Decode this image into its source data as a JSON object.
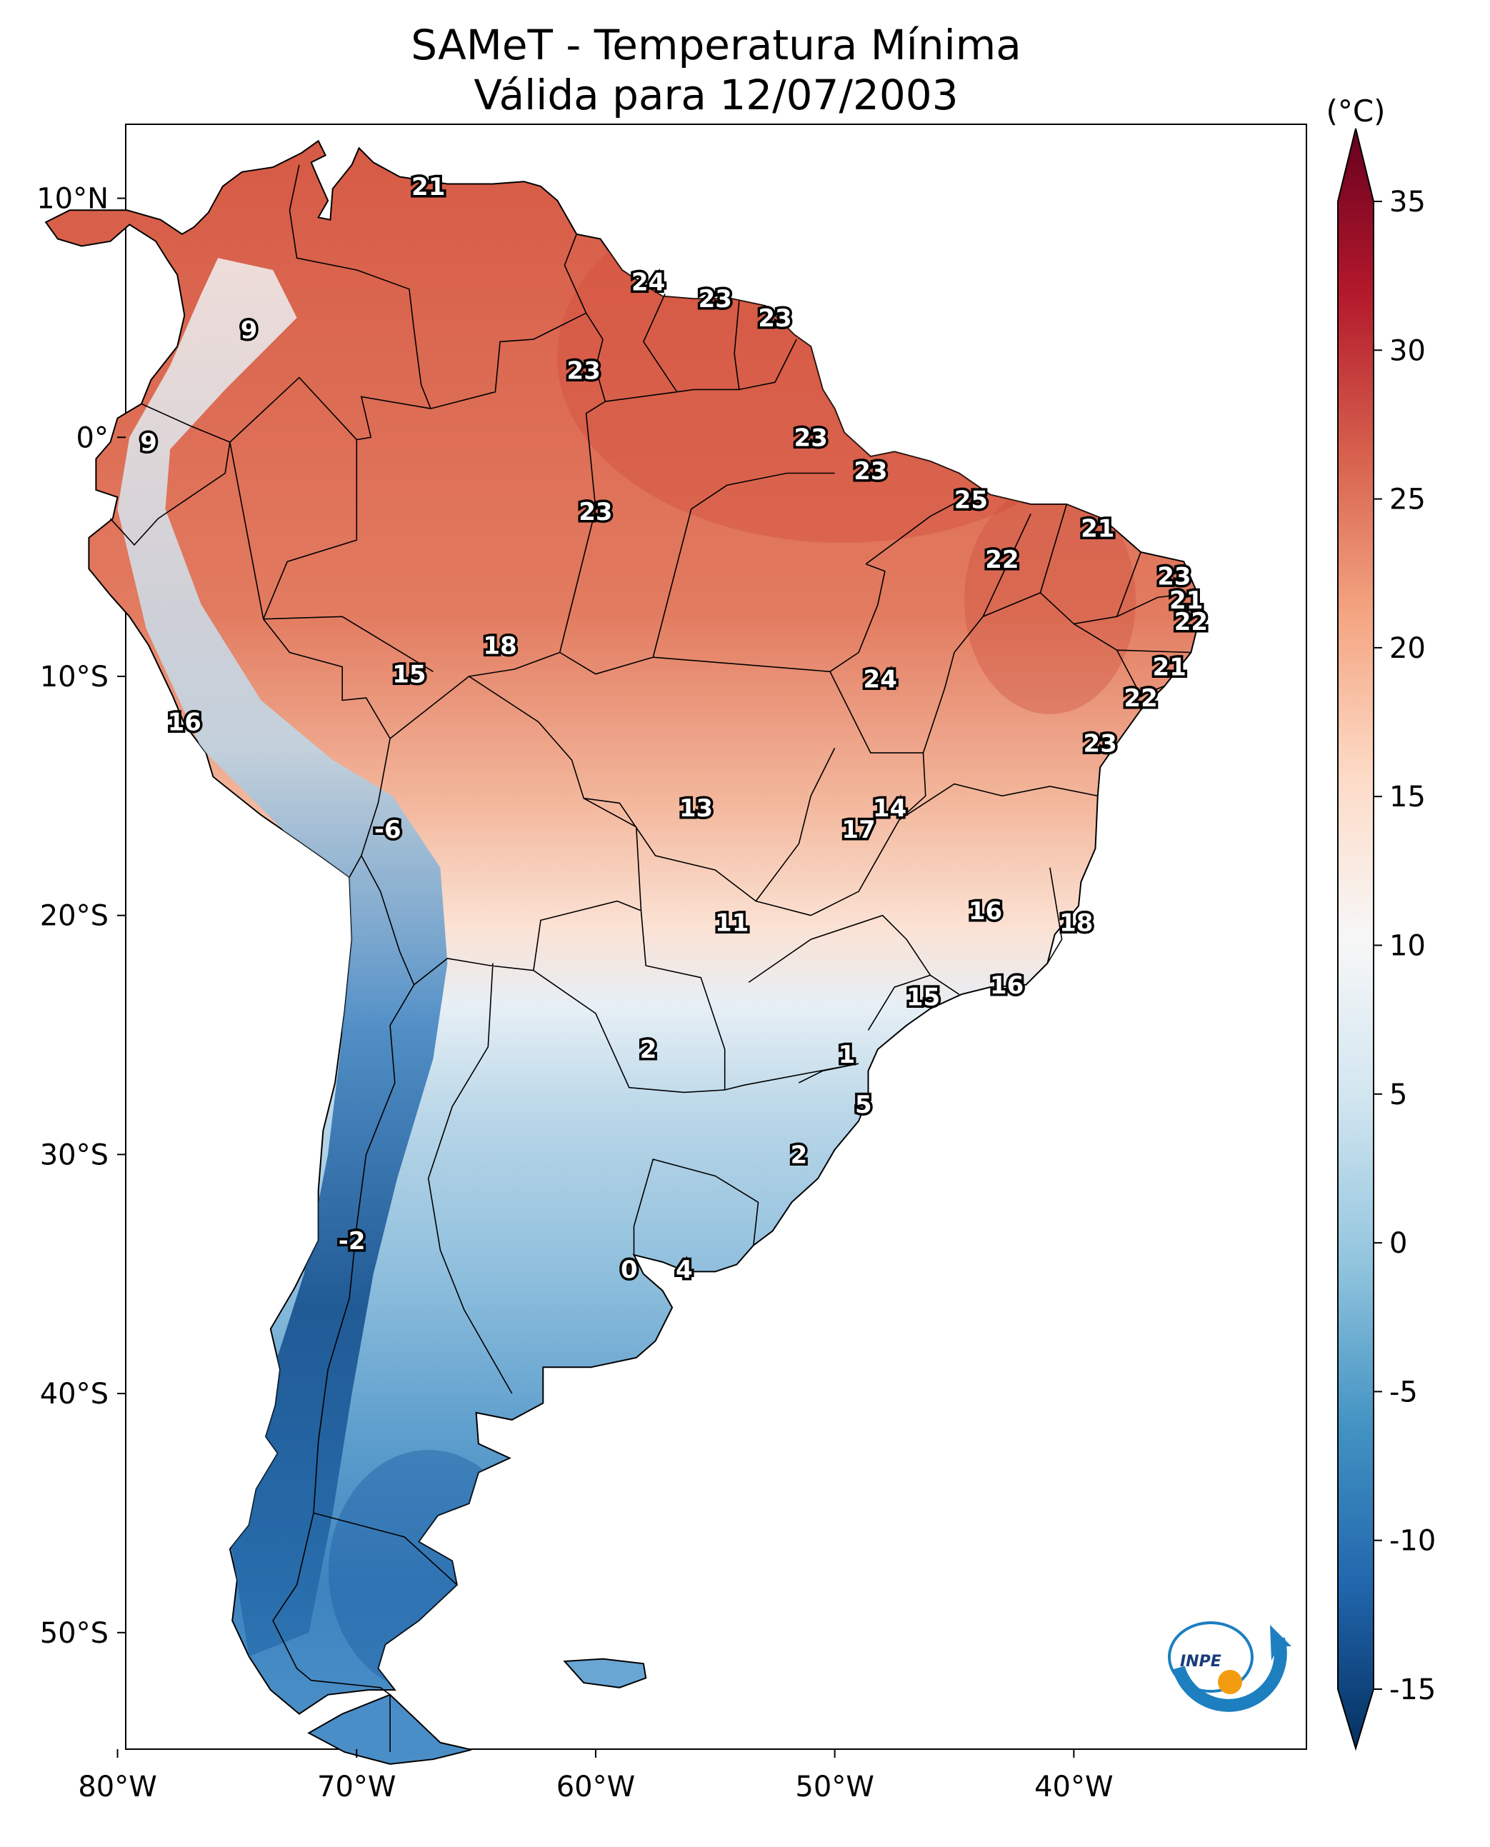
{
  "title": {
    "line1": "SAMeT - Temperatura Mínima",
    "line2": "Válida para 12/07/2003"
  },
  "axes": {
    "lon_labels": [
      "80°W",
      "70°W",
      "60°W",
      "50°W",
      "40°W"
    ],
    "lat_labels": [
      "10°N",
      "0°",
      "10°S",
      "20°S",
      "30°S",
      "40°S",
      "50°S"
    ]
  },
  "colorbar": {
    "unit": "(°C)",
    "ticks": [
      "35",
      "30",
      "25",
      "20",
      "15",
      "10",
      "5",
      "0",
      "-5",
      "-10",
      "-15"
    ],
    "min": -15,
    "max": 35,
    "colors": [
      "#053061",
      "#2166ac",
      "#4393c3",
      "#92c5de",
      "#d1e5f0",
      "#f7f7f7",
      "#fddbc7",
      "#f4a582",
      "#d6604d",
      "#b2182b",
      "#67001f"
    ]
  },
  "contour_labels": [
    {
      "text": "21",
      "lon": -67,
      "lat": 10.5
    },
    {
      "text": "24",
      "lon": -57.8,
      "lat": 6.5
    },
    {
      "text": "23",
      "lon": -55,
      "lat": 5.8
    },
    {
      "text": "23",
      "lon": -52.5,
      "lat": 5
    },
    {
      "text": "9",
      "lon": -74.5,
      "lat": 4.5
    },
    {
      "text": "23",
      "lon": -60.5,
      "lat": 2.8
    },
    {
      "text": "9",
      "lon": -78.7,
      "lat": -0.2
    },
    {
      "text": "23",
      "lon": -51,
      "lat": 0
    },
    {
      "text": "23",
      "lon": -48.5,
      "lat": -1.4
    },
    {
      "text": "25",
      "lon": -44.3,
      "lat": -2.6
    },
    {
      "text": "23",
      "lon": -60,
      "lat": -3.1
    },
    {
      "text": "21",
      "lon": -39,
      "lat": -3.8
    },
    {
      "text": "22",
      "lon": -43,
      "lat": -5.1
    },
    {
      "text": "23",
      "lon": -35.8,
      "lat": -5.8
    },
    {
      "text": "21",
      "lon": -35.3,
      "lat": -6.8
    },
    {
      "text": "22",
      "lon": -35.1,
      "lat": -7.7
    },
    {
      "text": "18",
      "lon": -64,
      "lat": -8.7
    },
    {
      "text": "21",
      "lon": -36,
      "lat": -9.6
    },
    {
      "text": "15",
      "lon": -67.8,
      "lat": -9.9
    },
    {
      "text": "24",
      "lon": -48.1,
      "lat": -10.1
    },
    {
      "text": "22",
      "lon": -37.2,
      "lat": -10.9
    },
    {
      "text": "16",
      "lon": -77.2,
      "lat": -11.9
    },
    {
      "text": "23",
      "lon": -38.9,
      "lat": -12.8
    },
    {
      "text": "13",
      "lon": -55.8,
      "lat": -15.5
    },
    {
      "text": "14",
      "lon": -47.7,
      "lat": -15.5
    },
    {
      "text": "17",
      "lon": -49,
      "lat": -16.4
    },
    {
      "text": "-6",
      "lon": -68.7,
      "lat": -16.4
    },
    {
      "text": "16",
      "lon": -43.7,
      "lat": -19.8
    },
    {
      "text": "11",
      "lon": -54.3,
      "lat": -20.3
    },
    {
      "text": "18",
      "lon": -39.9,
      "lat": -20.3
    },
    {
      "text": "16",
      "lon": -42.8,
      "lat": -22.9
    },
    {
      "text": "15",
      "lon": -46.3,
      "lat": -23.4
    },
    {
      "text": "2",
      "lon": -57.8,
      "lat": -25.6
    },
    {
      "text": "1",
      "lon": -49.5,
      "lat": -25.8
    },
    {
      "text": "5",
      "lon": -48.8,
      "lat": -27.9
    },
    {
      "text": "2",
      "lon": -51.5,
      "lat": -30
    },
    {
      "text": "-2",
      "lon": -70.2,
      "lat": -33.6
    },
    {
      "text": "0",
      "lon": -58.6,
      "lat": -34.8
    },
    {
      "text": "4",
      "lon": -56.3,
      "lat": -34.8
    }
  ],
  "logo": {
    "text": "INPE"
  }
}
